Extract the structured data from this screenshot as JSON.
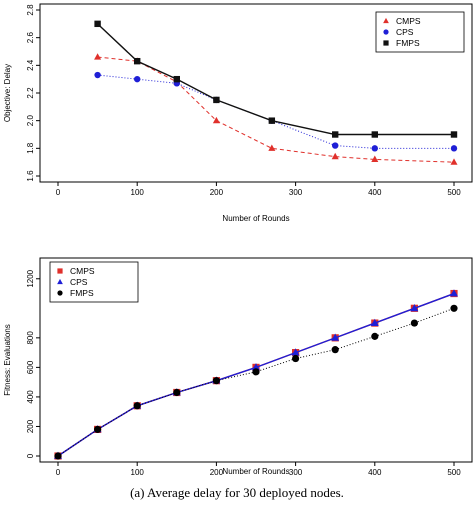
{
  "caption": "(a) Average delay for 30 deployed nodes.",
  "chart_data": [
    {
      "type": "line",
      "xlabel": "Number of Rounds",
      "ylabel": "Objective: Delay",
      "xlim": [
        0,
        500
      ],
      "ylim": [
        1.6,
        2.8
      ],
      "xticks": [
        0,
        100,
        200,
        300,
        400,
        500
      ],
      "yticks": [
        1.6,
        1.8,
        2.0,
        2.2,
        2.4,
        2.6,
        2.8
      ],
      "legend_position": "top-right",
      "series": [
        {
          "name": "CMPS",
          "color": "#e0302b",
          "marker": "triangle",
          "dash": "4,3",
          "x": [
            50,
            100,
            150,
            200,
            270,
            350,
            400,
            500
          ],
          "y": [
            2.46,
            2.43,
            2.28,
            2.0,
            1.8,
            1.74,
            1.72,
            1.7
          ]
        },
        {
          "name": "CPS",
          "color": "#1f1fd6",
          "marker": "circle",
          "dash": "1,2",
          "x": [
            50,
            100,
            150,
            200,
            270,
            350,
            400,
            500
          ],
          "y": [
            2.33,
            2.3,
            2.27,
            2.15,
            2.0,
            1.82,
            1.8,
            1.8
          ]
        },
        {
          "name": "FMPS",
          "color": "#111111",
          "marker": "square",
          "dash": "",
          "x": [
            50,
            100,
            150,
            200,
            270,
            350,
            400,
            500
          ],
          "y": [
            2.7,
            2.43,
            2.3,
            2.15,
            2.0,
            1.9,
            1.9,
            1.9
          ]
        }
      ]
    },
    {
      "type": "line",
      "xlabel": "Number of Rounds",
      "ylabel": "Fitness: Evaluations",
      "xlim": [
        0,
        500
      ],
      "ylim": [
        0,
        1300
      ],
      "xticks": [
        0,
        100,
        200,
        300,
        400,
        500
      ],
      "yticks": [
        0,
        200,
        400,
        600,
        800,
        1200
      ],
      "legend_position": "top-left",
      "series": [
        {
          "name": "CMPS",
          "color": "#e0302b",
          "marker": "square",
          "dash": "",
          "x": [
            0,
            50,
            100,
            150,
            200,
            250,
            300,
            350,
            400,
            450,
            500
          ],
          "y": [
            0,
            180,
            340,
            430,
            510,
            600,
            700,
            800,
            900,
            1000,
            1100
          ]
        },
        {
          "name": "CPS",
          "color": "#1f1fd6",
          "marker": "triangle",
          "dash": "",
          "x": [
            0,
            50,
            100,
            150,
            200,
            250,
            300,
            350,
            400,
            450,
            500
          ],
          "y": [
            0,
            180,
            340,
            430,
            510,
            600,
            700,
            800,
            900,
            1000,
            1100
          ]
        },
        {
          "name": "FMPS",
          "color": "#000000",
          "marker": "circle",
          "dash": "1,2",
          "x": [
            0,
            50,
            100,
            150,
            200,
            250,
            300,
            350,
            400,
            450,
            500
          ],
          "y": [
            0,
            180,
            340,
            430,
            510,
            570,
            660,
            720,
            810,
            900,
            1000
          ]
        }
      ]
    }
  ]
}
